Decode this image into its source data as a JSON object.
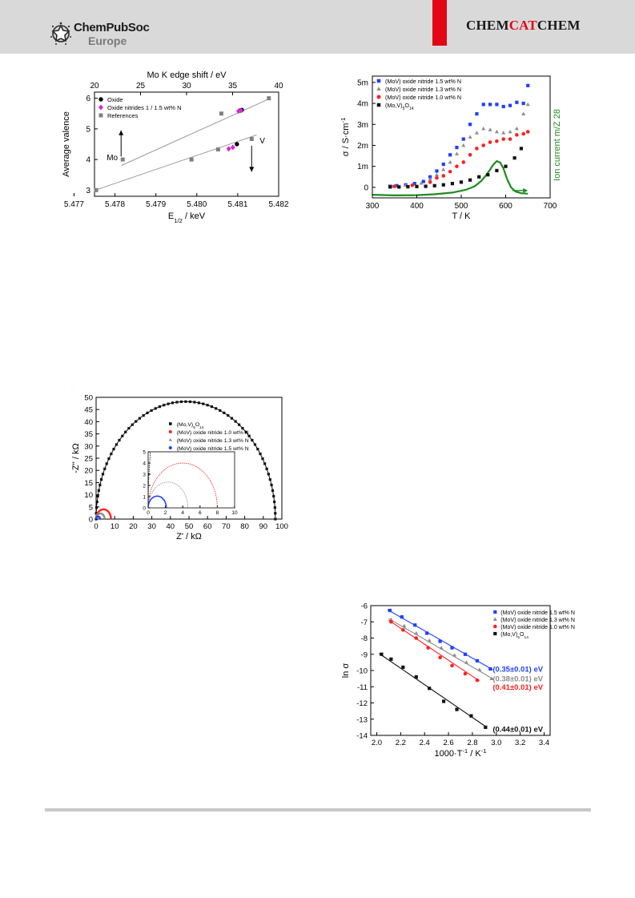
{
  "header": {
    "publisher_line1": "ChemPubSoc",
    "publisher_line2": "Europe",
    "journal_part1": "CHEM",
    "journal_part2": "CAT",
    "journal_part3": "CHEM"
  },
  "colors": {
    "header_band": "#d9d9d9",
    "brand_red": "#e30613",
    "ms_green": "#1e8c1e",
    "series_blue": "#1f3fff",
    "series_gray": "#8c8c8c",
    "series_red": "#ff1f1f",
    "series_black": "#111111"
  },
  "chart_data": [
    {
      "id": "fig_a",
      "type": "scatter",
      "xlabel_main": "E",
      "xlabel_sub": "1/2",
      "xlabel_rest": " / keV",
      "x2label": "Mo K edge shift / eV",
      "ylabel": "Average valence",
      "xlim": [
        5.4775,
        5.482
      ],
      "ylim": [
        2.8,
        6.2
      ],
      "xticks": [
        5.477,
        5.478,
        5.479,
        5.48,
        5.481,
        5.482
      ],
      "x2ticks": [
        20,
        25,
        30,
        35,
        40
      ],
      "x2lim": [
        20,
        40
      ],
      "yticks": [
        3,
        4,
        5,
        6
      ],
      "legend_position": "top-left",
      "series": [
        {
          "name": "Oxide",
          "marker": "circle",
          "color": "#000000",
          "x": [
            5.48098,
            5.48106,
            5.4811
          ],
          "y": [
            4.5,
            5.6,
            5.62
          ]
        },
        {
          "name": "Oxide nitrides 1 / 1.5 wt% N",
          "marker": "diamond",
          "color": "#d12bd1",
          "x": [
            5.48078,
            5.48088,
            5.48102,
            5.48108
          ],
          "y": [
            4.35,
            4.4,
            5.58,
            5.6
          ]
        },
        {
          "name": "References",
          "marker": "square",
          "color": "#808080",
          "x": [
            5.47754,
            5.47819,
            5.47987,
            5.48052,
            5.4806,
            5.48134,
            5.48176
          ],
          "y": [
            3.0,
            4.0,
            4.0,
            4.33,
            5.5,
            4.67,
            6.0
          ]
        }
      ],
      "fit_lines": [
        {
          "label": "Mo",
          "x": [
            5.47815,
            5.4818
          ],
          "y": [
            3.8,
            6.0
          ]
        },
        {
          "label": "V",
          "x": [
            5.47752,
            5.48146
          ],
          "y": [
            3.0,
            4.8
          ]
        }
      ],
      "arrows": [
        {
          "label": "Mo",
          "direction": "up",
          "x": 5.47815,
          "y": [
            4.1,
            4.95
          ]
        },
        {
          "label": "V",
          "direction": "down",
          "x": 5.48134,
          "y": [
            4.45,
            3.6
          ]
        }
      ]
    },
    {
      "id": "fig_b",
      "type": "scatter",
      "xlabel": "T / K",
      "ylabel_main": "σ / S·cm",
      "ylabel_sup": "-1",
      "y2label": "Ion current m/Z 28",
      "xlim": [
        300,
        700
      ],
      "ylim": [
        -0.5,
        5.3
      ],
      "xticks": [
        300,
        400,
        500,
        600,
        700
      ],
      "yticks": [
        0,
        1,
        2,
        3,
        4,
        5
      ],
      "ytick_labels": [
        "0",
        "1m",
        "2m",
        "3m",
        "4m",
        "5m"
      ],
      "legend_position": "top-left",
      "series": [
        {
          "name": "(MoV) oxide nitride 1.5 wt% N",
          "marker": "square",
          "color": "#1f3fff",
          "x": [
            340,
            355,
            375,
            395,
            415,
            430,
            445,
            460,
            475,
            490,
            505,
            520,
            535,
            550,
            565,
            580,
            595,
            610,
            625,
            640,
            650
          ],
          "y": [
            0.05,
            0.08,
            0.12,
            0.18,
            0.28,
            0.5,
            0.78,
            1.1,
            1.55,
            1.9,
            2.3,
            3.0,
            3.5,
            3.95,
            3.95,
            3.95,
            3.85,
            3.9,
            4.05,
            4.0,
            4.85
          ]
        },
        {
          "name": "(MoV) oxide nitride 1.3 wt% N",
          "marker": "triangle",
          "color": "#8c8c8c",
          "x": [
            345,
            375,
            410,
            430,
            445,
            460,
            475,
            490,
            505,
            520,
            535,
            550,
            565,
            580,
            595,
            610,
            625,
            640,
            650
          ],
          "y": [
            0.05,
            0.1,
            0.2,
            0.4,
            0.6,
            0.85,
            1.2,
            1.6,
            2.0,
            2.4,
            2.6,
            2.8,
            2.75,
            2.65,
            2.6,
            2.65,
            2.8,
            3.5,
            3.95
          ]
        },
        {
          "name": "(MoV) oxide nitride 1.0 wt% N",
          "marker": "circle",
          "color": "#ff1f1f",
          "x": [
            350,
            390,
            430,
            445,
            460,
            475,
            490,
            505,
            520,
            535,
            550,
            565,
            580,
            595,
            610,
            625,
            640,
            650
          ],
          "y": [
            0.05,
            0.1,
            0.25,
            0.45,
            0.55,
            0.75,
            1.0,
            1.2,
            1.55,
            1.85,
            2.0,
            2.15,
            2.2,
            2.3,
            2.3,
            2.5,
            2.55,
            2.65
          ]
        },
        {
          "name": "(Mo,V)",
          "name_sub": "5",
          "name_rest": "O",
          "name_sub2": "14",
          "marker": "square",
          "color": "#111111",
          "x": [
            340,
            360,
            380,
            400,
            420,
            440,
            460,
            480,
            500,
            520,
            540,
            560,
            580,
            600,
            620,
            635
          ],
          "y": [
            0.02,
            0.02,
            0.03,
            0.04,
            0.05,
            0.08,
            0.12,
            0.18,
            0.25,
            0.35,
            0.5,
            0.6,
            0.8,
            1.0,
            1.4,
            1.85
          ]
        }
      ],
      "ms_trace": {
        "name": "Ion current m/Z 28",
        "color": "#1e8c1e",
        "x": [
          300,
          350,
          400,
          440,
          480,
          510,
          530,
          545,
          555,
          565,
          572,
          580,
          588,
          595,
          603,
          612,
          622,
          635,
          650
        ],
        "y": [
          -0.35,
          -0.38,
          -0.37,
          -0.33,
          -0.25,
          -0.12,
          0.05,
          0.3,
          0.55,
          0.85,
          1.08,
          1.25,
          1.18,
          0.9,
          0.4,
          0.0,
          -0.2,
          -0.28,
          -0.3
        ]
      },
      "arrow": {
        "direction": "right",
        "color": "#1e8c1e",
        "x": [
          615,
          650
        ],
        "y": -0.15
      }
    },
    {
      "id": "fig_c",
      "type": "scatter",
      "xlabel": "Z' / kΩ",
      "ylabel": "-Z'' / kΩ",
      "xlim": [
        0,
        100
      ],
      "ylim": [
        0,
        50
      ],
      "xticks": [
        0,
        10,
        20,
        30,
        40,
        50,
        60,
        70,
        80,
        90,
        100
      ],
      "yticks": [
        0,
        5,
        10,
        15,
        20,
        25,
        30,
        35,
        40,
        45,
        50
      ],
      "legend_position": "top-center",
      "series": [
        {
          "name": "(Mo,V)",
          "name_sub": "5",
          "name_rest": "O",
          "name_sub2": "14",
          "marker": "square",
          "color": "#111111",
          "shape": "semicircle",
          "r_min": 0,
          "r_max": 96.5
        },
        {
          "name": "(MoV) oxide nitride 1.0 wt% N",
          "marker": "circle",
          "color": "#ff1f1f",
          "shape": "semicircle",
          "r_min": 0,
          "r_max": 8.0
        },
        {
          "name": "(MoV) oxide nitride 1.3 wt% N",
          "marker": "triangle",
          "color": "#8c8c8c",
          "shape": "semicircle",
          "r_min": 0,
          "r_max": 4.6
        },
        {
          "name": "(MoV) oxide nitride 1.5 wt% N",
          "marker": "circle",
          "color": "#1f3fff",
          "shape": "semicircle",
          "r_min": 0,
          "r_max": 2.1
        }
      ],
      "inset": {
        "xlim": [
          0,
          10
        ],
        "ylim": [
          0,
          5
        ],
        "xticks": [
          0,
          2,
          4,
          6,
          8,
          10
        ],
        "yticks": [
          0,
          1,
          2,
          3,
          4,
          5
        ]
      }
    },
    {
      "id": "fig_d",
      "type": "scatter",
      "xlabel_main": "1000·T",
      "xlabel_sup": "-1",
      "xlabel_rest": " / K",
      "xlabel_sup2": "-1",
      "ylabel": "ln σ",
      "xlim": [
        1.95,
        3.45
      ],
      "ylim": [
        -14,
        -6
      ],
      "xticks": [
        2.0,
        2.2,
        2.4,
        2.6,
        2.8,
        3.0,
        3.2,
        3.4
      ],
      "yticks": [
        -6,
        -7,
        -8,
        -9,
        -10,
        -11,
        -12,
        -13,
        -14
      ],
      "legend_position": "top-right",
      "series": [
        {
          "name": "(MoV) oxide nitride 1.5 wt% N",
          "marker": "square",
          "color": "#1f3fff",
          "x": [
            2.11,
            2.21,
            2.32,
            2.42,
            2.53,
            2.63,
            2.74,
            2.84,
            2.95
          ],
          "y": [
            -6.3,
            -6.7,
            -7.2,
            -7.7,
            -8.2,
            -8.6,
            -9.0,
            -9.4,
            -9.9
          ],
          "fit": {
            "x": [
              2.09,
              2.97
            ],
            "y": [
              -6.25,
              -9.95
            ]
          },
          "energy_label": "(0.35±0.01) eV"
        },
        {
          "name": "(MoV) oxide nitride 1.3 wt% N",
          "marker": "triangle",
          "color": "#8c8c8c",
          "x": [
            2.12,
            2.23,
            2.33,
            2.44,
            2.54,
            2.65,
            2.75,
            2.86,
            2.96
          ],
          "y": [
            -6.85,
            -7.25,
            -7.7,
            -8.15,
            -8.6,
            -9.05,
            -9.5,
            -9.95,
            -10.5
          ],
          "fit": {
            "x": [
              2.1,
              2.98
            ],
            "y": [
              -6.8,
              -10.55
            ]
          },
          "energy_label": "(0.38±0.01) eV"
        },
        {
          "name": "(MoV) oxide nitride 1.0 wt% N",
          "marker": "circle",
          "color": "#ff1f1f",
          "x": [
            2.12,
            2.22,
            2.33,
            2.43,
            2.53,
            2.63,
            2.74,
            2.84
          ],
          "y": [
            -7.0,
            -7.5,
            -8.0,
            -8.6,
            -9.2,
            -9.7,
            -10.2,
            -10.6
          ],
          "fit": {
            "x": [
              2.1,
              2.86
            ],
            "y": [
              -6.9,
              -10.65
            ]
          },
          "energy_label": "(0.41±0.01) eV"
        },
        {
          "name": "(Mo,V)",
          "name_sub": "5",
          "name_rest": "O",
          "name_sub2": "14",
          "marker": "square",
          "color": "#111111",
          "x": [
            2.04,
            2.12,
            2.22,
            2.33,
            2.44,
            2.56,
            2.67,
            2.79,
            2.91
          ],
          "y": [
            -9.0,
            -9.3,
            -9.8,
            -10.4,
            -11.1,
            -11.9,
            -12.4,
            -12.8,
            -13.5
          ],
          "fit": {
            "x": [
              2.02,
              2.92
            ],
            "y": [
              -8.95,
              -13.5
            ]
          },
          "energy_label": "(0.44±0.01) eV"
        }
      ]
    }
  ]
}
